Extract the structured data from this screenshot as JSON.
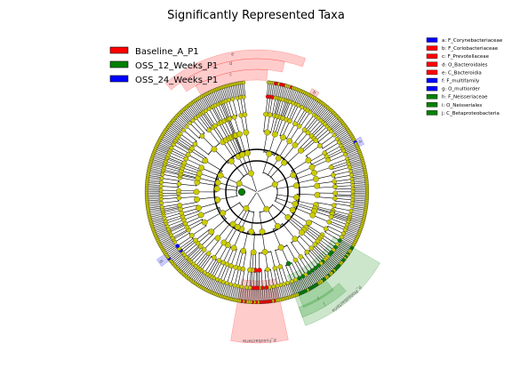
{
  "chart_data": {
    "type": "cladogram",
    "title": "Significantly Represented Taxa",
    "class_legend": [
      {
        "name": "Baseline_A_P1",
        "color": "#ff0000"
      },
      {
        "name": "OSS_12_Weeks_P1",
        "color": "#008000"
      },
      {
        "name": "OSS_24_Weeks_P1",
        "color": "#0000ff"
      }
    ],
    "clade_legend": [
      {
        "key": "a",
        "label": "a: F_Corynebacteriaceae",
        "color": "#0000ff"
      },
      {
        "key": "b",
        "label": "b: F_Coriobacteriaceae",
        "color": "#ff0000"
      },
      {
        "key": "c",
        "label": "c: F_Prevotellaceae",
        "color": "#ff0000"
      },
      {
        "key": "d",
        "label": "d: O_Bacteroidales",
        "color": "#ff0000"
      },
      {
        "key": "e",
        "label": "e: C_Bacteroidia",
        "color": "#ff0000"
      },
      {
        "key": "f",
        "label": "f: F_multifamily",
        "color": "#0000ff"
      },
      {
        "key": "g",
        "label": "g: O_multiorder",
        "color": "#0000ff"
      },
      {
        "key": "h",
        "label": "h: F_Neisseriaceae",
        "color": "#008000"
      },
      {
        "key": "i",
        "label": "i: O_Neisseriales",
        "color": "#008000"
      },
      {
        "key": "j",
        "label": "j: C_Betaproteobacteria",
        "color": "#008000"
      }
    ],
    "sectors": [
      {
        "class": "Baseline_A_P1",
        "start_deg": -40,
        "end_deg": 20,
        "r_in": 150,
        "r_out": 160,
        "label": "e"
      },
      {
        "class": "Baseline_A_P1",
        "start_deg": -35,
        "end_deg": 12,
        "r_in": 138,
        "r_out": 150,
        "label": "d"
      },
      {
        "class": "Baseline_A_P1",
        "start_deg": -30,
        "end_deg": 5,
        "r_in": 126,
        "r_out": 138,
        "label": "c"
      },
      {
        "class": "Baseline_A_P1",
        "start_deg": 28,
        "end_deg": 32,
        "r_in": 126,
        "r_out": 132,
        "label": "b"
      },
      {
        "class": "Baseline_A_P1",
        "start_deg": 168,
        "end_deg": 190,
        "r_in": 100,
        "r_out": 170,
        "label": "p_Fusobacteria"
      },
      {
        "class": "OSS_12_Weeks_P1",
        "start_deg": 142,
        "end_deg": 158,
        "r_in": 126,
        "r_out": 140,
        "label": "i"
      },
      {
        "class": "OSS_12_Weeks_P1",
        "start_deg": 138,
        "end_deg": 160,
        "r_in": 138,
        "r_out": 150,
        "label": "j"
      },
      {
        "class": "OSS_12_Weeks_P1",
        "start_deg": 120,
        "end_deg": 160,
        "r_in": 100,
        "r_out": 160,
        "label": "p_Proteobacteria"
      },
      {
        "class": "OSS_24_Weeks_P1",
        "start_deg": 62,
        "end_deg": 66,
        "r_in": 126,
        "r_out": 132,
        "label": "a"
      },
      {
        "class": "OSS_24_Weeks_P1",
        "start_deg": 232,
        "end_deg": 236,
        "r_in": 126,
        "r_out": 136,
        "label": "g"
      }
    ],
    "rings": {
      "levels": [
        1,
        2,
        3,
        4,
        5,
        6
      ],
      "radii": [
        22,
        45,
        68,
        88,
        108,
        125
      ]
    },
    "tree_seed": 17
  }
}
